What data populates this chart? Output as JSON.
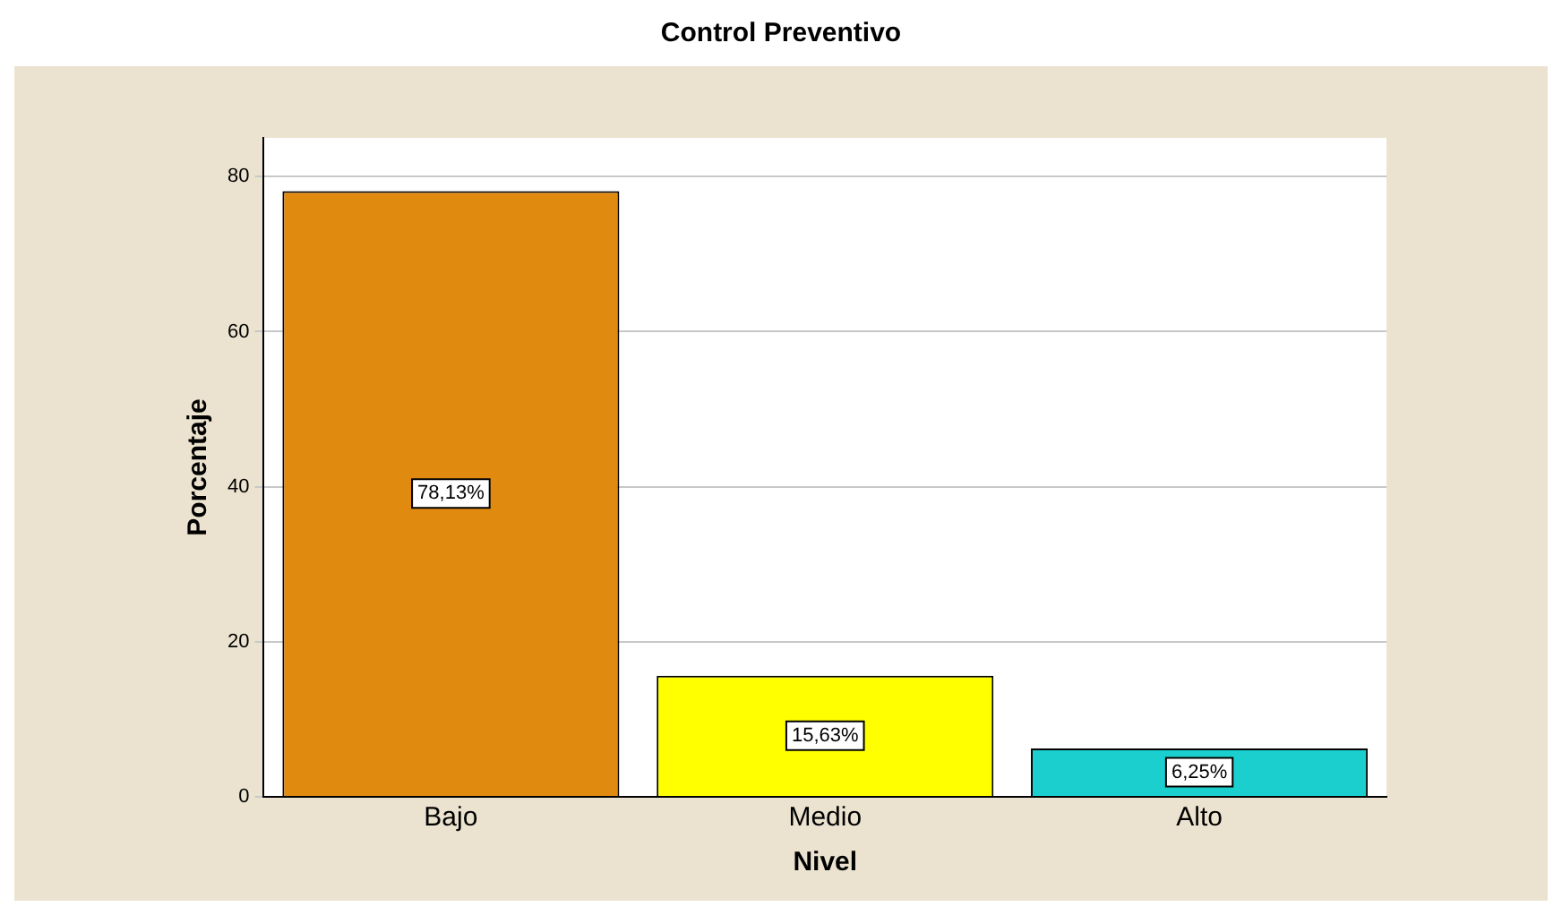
{
  "chart_data": {
    "type": "bar",
    "title": "Control Preventivo",
    "xlabel": "Nivel",
    "ylabel": "Porcentaje",
    "categories": [
      "Bajo",
      "Medio",
      "Alto"
    ],
    "values": [
      78.13,
      15.63,
      6.25
    ],
    "colors": [
      "#e08a10",
      "#ffff00",
      "#1ccfcf"
    ],
    "value_labels": [
      "78,13%",
      "15,63%",
      "6,25%"
    ],
    "ylim": [
      0,
      85
    ],
    "yticks": [
      0,
      20,
      40,
      60,
      80
    ],
    "grid": "y"
  }
}
